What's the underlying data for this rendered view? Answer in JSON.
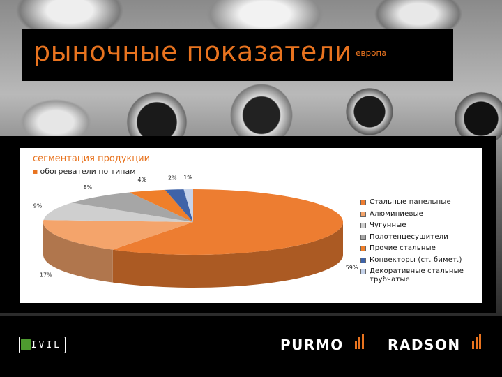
{
  "header": {
    "title": "рыночные показатели",
    "subtitle": "европа"
  },
  "section": {
    "title": "сегментация продукции",
    "bullet": "обогреватели по типам"
  },
  "chart_data": {
    "type": "pie",
    "three_d": true,
    "categories": [
      "Стальные панельные",
      "Алюминиевые",
      "Чугунные",
      "Полотенцесушители",
      "Прочие стальные",
      "Конвекторы (ст. бимет.)",
      "Декоративные стальные трубчатые"
    ],
    "values": [
      59,
      17,
      9,
      8,
      4,
      2,
      1
    ],
    "data_labels": [
      "59%",
      "17%",
      "9%",
      "8%",
      "4%",
      "2%",
      "1%"
    ],
    "colors": [
      "#ed7d31",
      "#f4a46b",
      "#cfcfcf",
      "#a6a6a6",
      "#ef7f2a",
      "#3f63a8",
      "#c6d3ea"
    ],
    "legend": {
      "placement": "right"
    }
  },
  "footer": {
    "logo_civil": "CIVIL",
    "logo_purmo": "PURMO",
    "logo_radson": "RADSON",
    "logo_bars_color": "#e8731f"
  }
}
